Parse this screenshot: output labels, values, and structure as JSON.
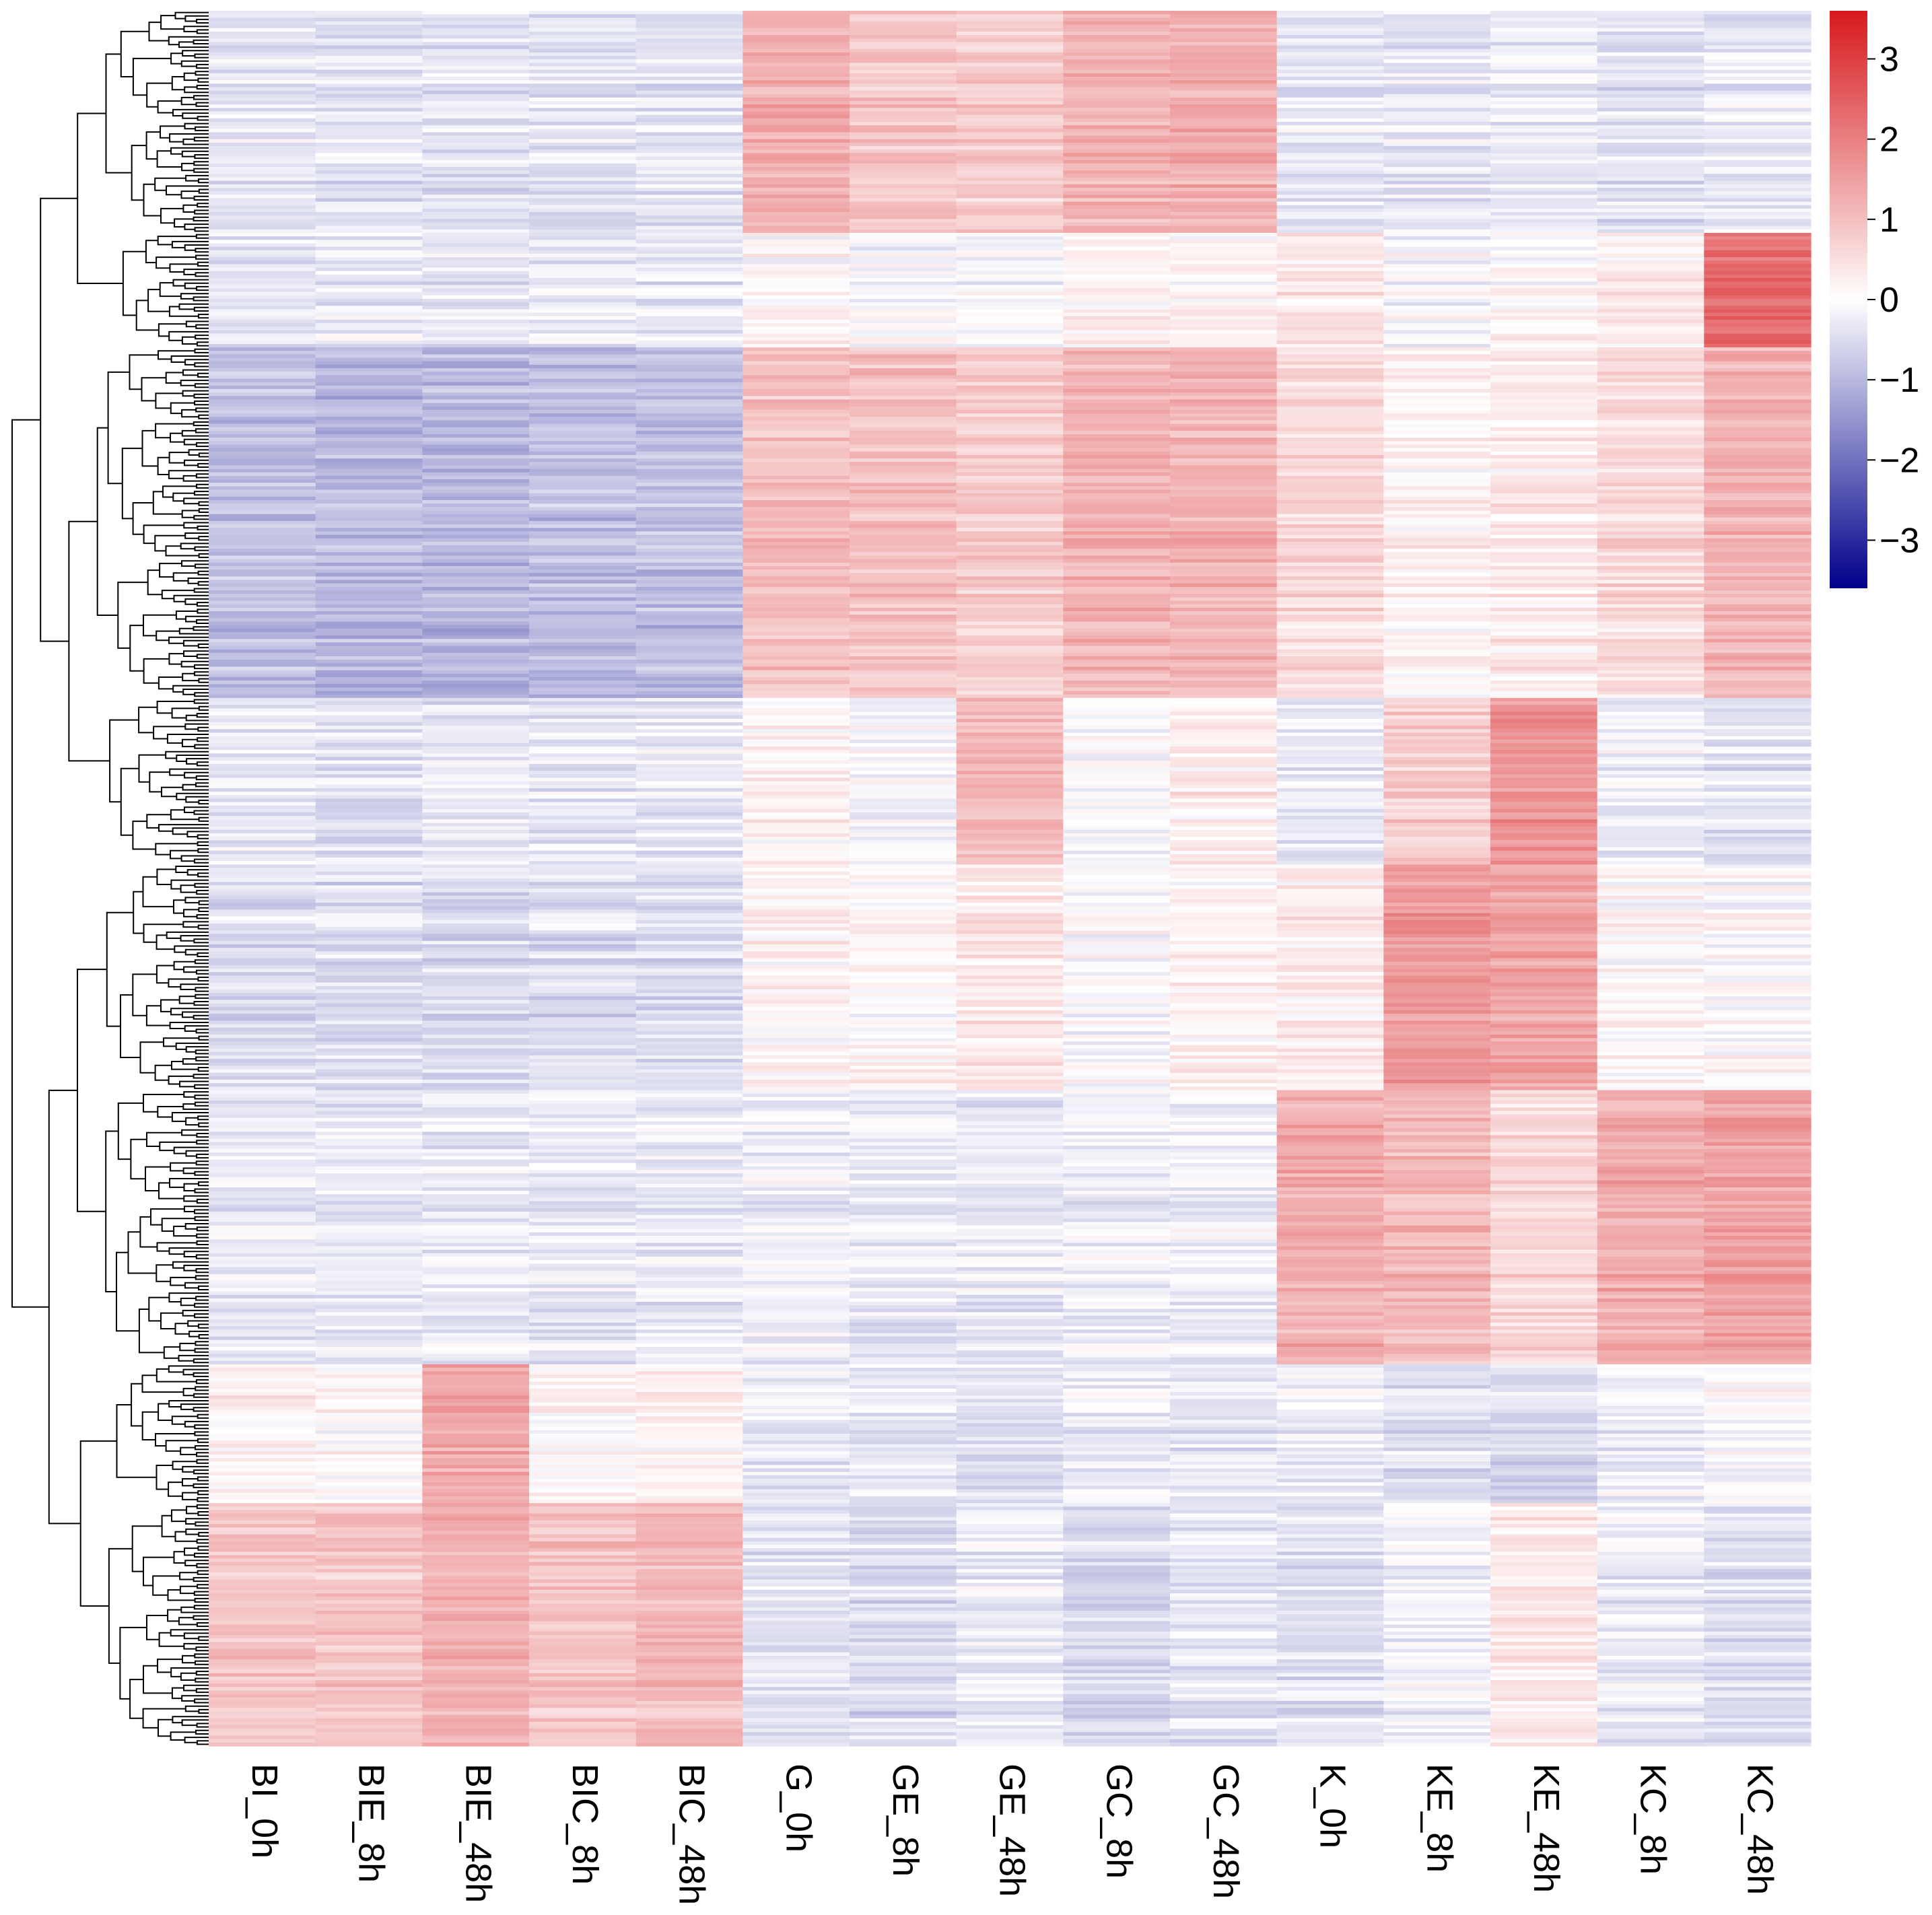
{
  "chart_data": {
    "type": "heatmap",
    "title": "",
    "columns": [
      "BI_0h",
      "BIE_8h",
      "BIE_48h",
      "BIC_8h",
      "BIC_48h",
      "G_0h",
      "GE_8h",
      "GE_48h",
      "GC_8h",
      "GC_48h",
      "K_0h",
      "KE_8h",
      "KE_48h",
      "KC_8h",
      "KC_48h"
    ],
    "row_count": 500,
    "row_clusters": [
      {
        "rows": [
          0,
          64
        ],
        "values": [
          -0.3,
          -0.4,
          -0.4,
          -0.4,
          -0.4,
          1.3,
          0.9,
          0.8,
          1.2,
          1.3,
          -0.3,
          -0.3,
          -0.2,
          -0.4,
          -0.3
        ]
      },
      {
        "rows": [
          64,
          97
        ],
        "values": [
          -0.3,
          -0.3,
          -0.3,
          -0.3,
          -0.3,
          0.1,
          -0.1,
          -0.1,
          0.2,
          0.2,
          0.4,
          -0.1,
          0.1,
          0.3,
          2.3
        ]
      },
      {
        "rows": [
          97,
          198
        ],
        "values": [
          -0.9,
          -1.0,
          -1.0,
          -0.9,
          -0.9,
          1.0,
          1.0,
          0.8,
          1.2,
          1.2,
          0.6,
          0.2,
          0.3,
          0.6,
          1.2
        ]
      },
      {
        "rows": [
          198,
          246
        ],
        "values": [
          -0.3,
          -0.4,
          -0.3,
          -0.3,
          -0.3,
          0.2,
          -0.1,
          1.1,
          0.0,
          0.3,
          -0.3,
          0.8,
          1.7,
          -0.2,
          -0.4
        ]
      },
      {
        "rows": [
          246,
          311
        ],
        "values": [
          -0.5,
          -0.5,
          -0.5,
          -0.5,
          -0.5,
          0.2,
          0.1,
          0.4,
          0.0,
          0.2,
          0.3,
          1.6,
          1.4,
          0.1,
          0.0
        ]
      },
      {
        "rows": [
          311,
          390
        ],
        "values": [
          -0.3,
          -0.3,
          -0.3,
          -0.3,
          -0.3,
          -0.2,
          -0.3,
          -0.3,
          -0.2,
          -0.2,
          1.3,
          1.1,
          0.6,
          1.3,
          1.5
        ]
      },
      {
        "rows": [
          390,
          430
        ],
        "values": [
          0.2,
          0.1,
          1.4,
          0.1,
          0.2,
          -0.3,
          -0.3,
          -0.4,
          -0.2,
          -0.3,
          -0.2,
          -0.4,
          -0.5,
          -0.2,
          0.0
        ]
      },
      {
        "rows": [
          430,
          500
        ],
        "values": [
          0.9,
          0.9,
          1.2,
          0.9,
          1.1,
          -0.4,
          -0.5,
          -0.3,
          -0.6,
          -0.4,
          -0.5,
          -0.2,
          0.3,
          -0.3,
          -0.5
        ]
      }
    ],
    "color_scale": {
      "min": -3.6,
      "max": 3.6,
      "low": "#00008b",
      "mid": "#ffffff",
      "high": "#d7191c"
    },
    "legend_ticks": [
      "3",
      "2",
      "1",
      "0",
      "−1",
      "−2",
      "−3"
    ],
    "dendrogram": "row",
    "legend_position": "top-right"
  }
}
